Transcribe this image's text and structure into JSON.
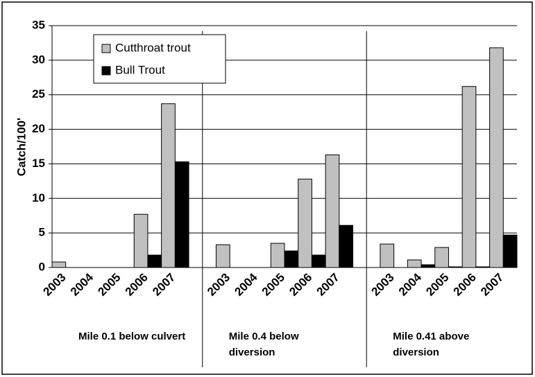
{
  "chart_data": {
    "type": "bar",
    "y_label": "Catch/100'",
    "categories": [
      "2003",
      "2004",
      "2005",
      "2006",
      "2007",
      null,
      "2003",
      "2004",
      "2005",
      "2006",
      "2007",
      null,
      "2003",
      "2004",
      "2005",
      "2006",
      "2007"
    ],
    "group_labels": [
      "Mile 0.1 below culvert",
      "Mile 0.4 below diversion",
      "Mile 0.41 above diversion"
    ],
    "series": [
      {
        "name": "Cutthroat trout",
        "color": "#c0c0c0",
        "values": [
          0.8,
          0,
          0,
          7.7,
          23.7,
          null,
          3.3,
          0,
          3.5,
          12.8,
          16.3,
          null,
          3.4,
          1.1,
          2.9,
          26.2,
          31.8
        ]
      },
      {
        "name": "Bull Trout",
        "color": "#000000",
        "values": [
          0,
          0,
          0,
          1.8,
          15.3,
          null,
          0,
          0,
          2.4,
          1.8,
          6.1,
          null,
          0,
          0.4,
          0.1,
          0.1,
          4.7
        ]
      }
    ],
    "ylim": [
      0,
      35
    ],
    "yticks": [
      0,
      5,
      10,
      15,
      20,
      25,
      30,
      35
    ],
    "grid": true,
    "legend": "upper left"
  }
}
